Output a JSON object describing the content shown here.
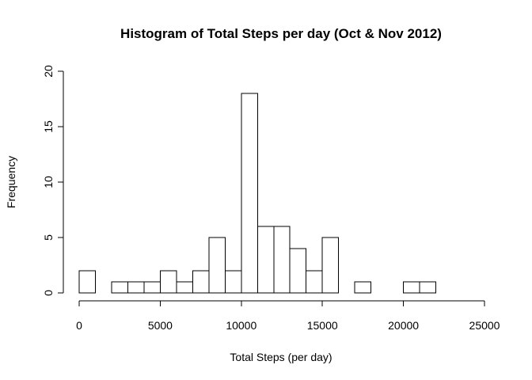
{
  "chart_data": {
    "type": "bar",
    "title": "Histogram of Total Steps per day (Oct & Nov 2012)",
    "xlabel": "Total Steps (per day)",
    "ylabel": "Frequency",
    "xlim": [
      0,
      25000
    ],
    "ylim": [
      0,
      20
    ],
    "x_ticks": [
      "0",
      "5000",
      "10000",
      "15000",
      "20000",
      "25000"
    ],
    "y_ticks": [
      "0",
      "5",
      "10",
      "15",
      "20"
    ],
    "bin_width": 1000,
    "bins": [
      {
        "start": 0,
        "end": 1000,
        "count": 2
      },
      {
        "start": 1000,
        "end": 2000,
        "count": 0
      },
      {
        "start": 2000,
        "end": 3000,
        "count": 1
      },
      {
        "start": 3000,
        "end": 4000,
        "count": 1
      },
      {
        "start": 4000,
        "end": 5000,
        "count": 1
      },
      {
        "start": 5000,
        "end": 6000,
        "count": 2
      },
      {
        "start": 6000,
        "end": 7000,
        "count": 1
      },
      {
        "start": 7000,
        "end": 8000,
        "count": 2
      },
      {
        "start": 8000,
        "end": 9000,
        "count": 5
      },
      {
        "start": 9000,
        "end": 10000,
        "count": 2
      },
      {
        "start": 10000,
        "end": 11000,
        "count": 18
      },
      {
        "start": 11000,
        "end": 12000,
        "count": 6
      },
      {
        "start": 12000,
        "end": 13000,
        "count": 6
      },
      {
        "start": 13000,
        "end": 14000,
        "count": 4
      },
      {
        "start": 14000,
        "end": 15000,
        "count": 2
      },
      {
        "start": 15000,
        "end": 16000,
        "count": 5
      },
      {
        "start": 16000,
        "end": 17000,
        "count": 0
      },
      {
        "start": 17000,
        "end": 18000,
        "count": 1
      },
      {
        "start": 18000,
        "end": 19000,
        "count": 0
      },
      {
        "start": 19000,
        "end": 20000,
        "count": 0
      },
      {
        "start": 20000,
        "end": 21000,
        "count": 1
      },
      {
        "start": 21000,
        "end": 22000,
        "count": 1
      }
    ],
    "grid": false,
    "legend": "none",
    "bar_fill": "#ffffff",
    "bar_stroke": "#000000"
  }
}
